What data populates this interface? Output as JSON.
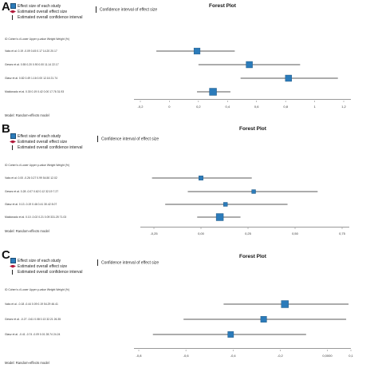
{
  "legend": {
    "effect_size": "Effect size of each study",
    "overall_effect": "Estimated overall effect size",
    "overall_ci": "Estimated overall confidence interval",
    "ci": "Confidence interval of effect size"
  },
  "table_header": "ID        Cohen's d Lower Upper p-value Weight Weight (%)",
  "forest_title": "Forest Plot",
  "model_label": "Model: Random-effects model",
  "colors": {
    "marker": "#2b7bba",
    "diamond": "#b2183a",
    "line": "#222222"
  },
  "panels": [
    {
      "letter": "A",
      "title": "Forest Plot",
      "rows": [
        {
          "text": "Vaks et al.        0.19  -0.09   0.45   0.17  14.20   20.17"
        },
        {
          "text": "Gewez et al.       0.55   0.20   0.90   0.00  11.14   22.17"
        },
        {
          "text": "Glasz et al.       0.82   0.49   1.16   0.00  12.16   21.74"
        },
        {
          "text": "Maldonado et al.   0.30   0.19   0.42   0.00  17.76   31.93"
        }
      ],
      "chart_data": {
        "type": "forest",
        "xlim": [
          -0.2,
          1.2
        ],
        "ticks": [
          -0.2,
          0,
          0.2,
          0.4,
          0.6,
          0.8,
          1.0,
          1.2
        ],
        "tick_labels": [
          "-0,2",
          "0",
          "0,2",
          "0,4",
          "0,6",
          "0,8",
          "1",
          "1,2"
        ],
        "studies": [
          {
            "est": 0.19,
            "lo": -0.09,
            "hi": 0.45,
            "weight": 20.17
          },
          {
            "est": 0.55,
            "lo": 0.2,
            "hi": 0.9,
            "weight": 22.17
          },
          {
            "est": 0.82,
            "lo": 0.49,
            "hi": 1.16,
            "weight": 21.74
          },
          {
            "est": 0.3,
            "lo": 0.19,
            "hi": 0.42,
            "weight": 31.93
          }
        ]
      }
    },
    {
      "letter": "B",
      "title": "Forest Plot",
      "rows": [
        {
          "text": "Vaks et al.        0.00  -0.26   0.27   0.99  54.50   12.02"
        },
        {
          "text": "Gewez et al.       0.28  -0.07   0.62   0.12  32.19    7.27"
        },
        {
          "text": "Glasz et al.       0.13  -0.19   0.46   0.41  30.42    8.07"
        },
        {
          "text": "Maldonado et al.   0.10  -0.02   0.21   0.09  331.25  71.03"
        }
      ],
      "chart_data": {
        "type": "forest",
        "xlim": [
          -0.25,
          0.75
        ],
        "ticks": [
          -0.25,
          0,
          0.25,
          0.5,
          0.75
        ],
        "tick_labels": [
          "-0,25",
          "0,00",
          "0,25",
          "0,50",
          "0,75"
        ],
        "studies": [
          {
            "est": 0.0,
            "lo": -0.26,
            "hi": 0.27,
            "weight": 12.02
          },
          {
            "est": 0.28,
            "lo": -0.07,
            "hi": 0.62,
            "weight": 7.27
          },
          {
            "est": 0.13,
            "lo": -0.19,
            "hi": 0.46,
            "weight": 8.07
          },
          {
            "est": 0.1,
            "lo": -0.02,
            "hi": 0.21,
            "weight": 71.03
          }
        ]
      }
    },
    {
      "letter": "C",
      "title": "Forest Plot",
      "rows": [
        {
          "text": "Vaks et al.       -0.18  -0.44   0.09   0.19  54.29   46.41"
        },
        {
          "text": "Gewez et al.      -0.27  -0.61   0.08   0.13  32.21   26.35"
        },
        {
          "text": "Glasz et al.      -0.41  -0.74  -0.09   0.01  28.74   24.24"
        }
      ],
      "chart_data": {
        "type": "forest",
        "xlim": [
          -0.8,
          0.1
        ],
        "ticks": [
          -0.8,
          -0.6,
          -0.4,
          -0.2,
          0,
          0.1
        ],
        "tick_labels": [
          "-0,8",
          "-0,6",
          "-0,4",
          "-0,2",
          "0,0000",
          "0,1"
        ],
        "studies": [
          {
            "est": -0.18,
            "lo": -0.44,
            "hi": 0.09,
            "weight": 46.41
          },
          {
            "est": -0.27,
            "lo": -0.61,
            "hi": 0.08,
            "weight": 26.35
          },
          {
            "est": -0.41,
            "lo": -0.74,
            "hi": -0.09,
            "weight": 24.24
          }
        ]
      }
    }
  ]
}
